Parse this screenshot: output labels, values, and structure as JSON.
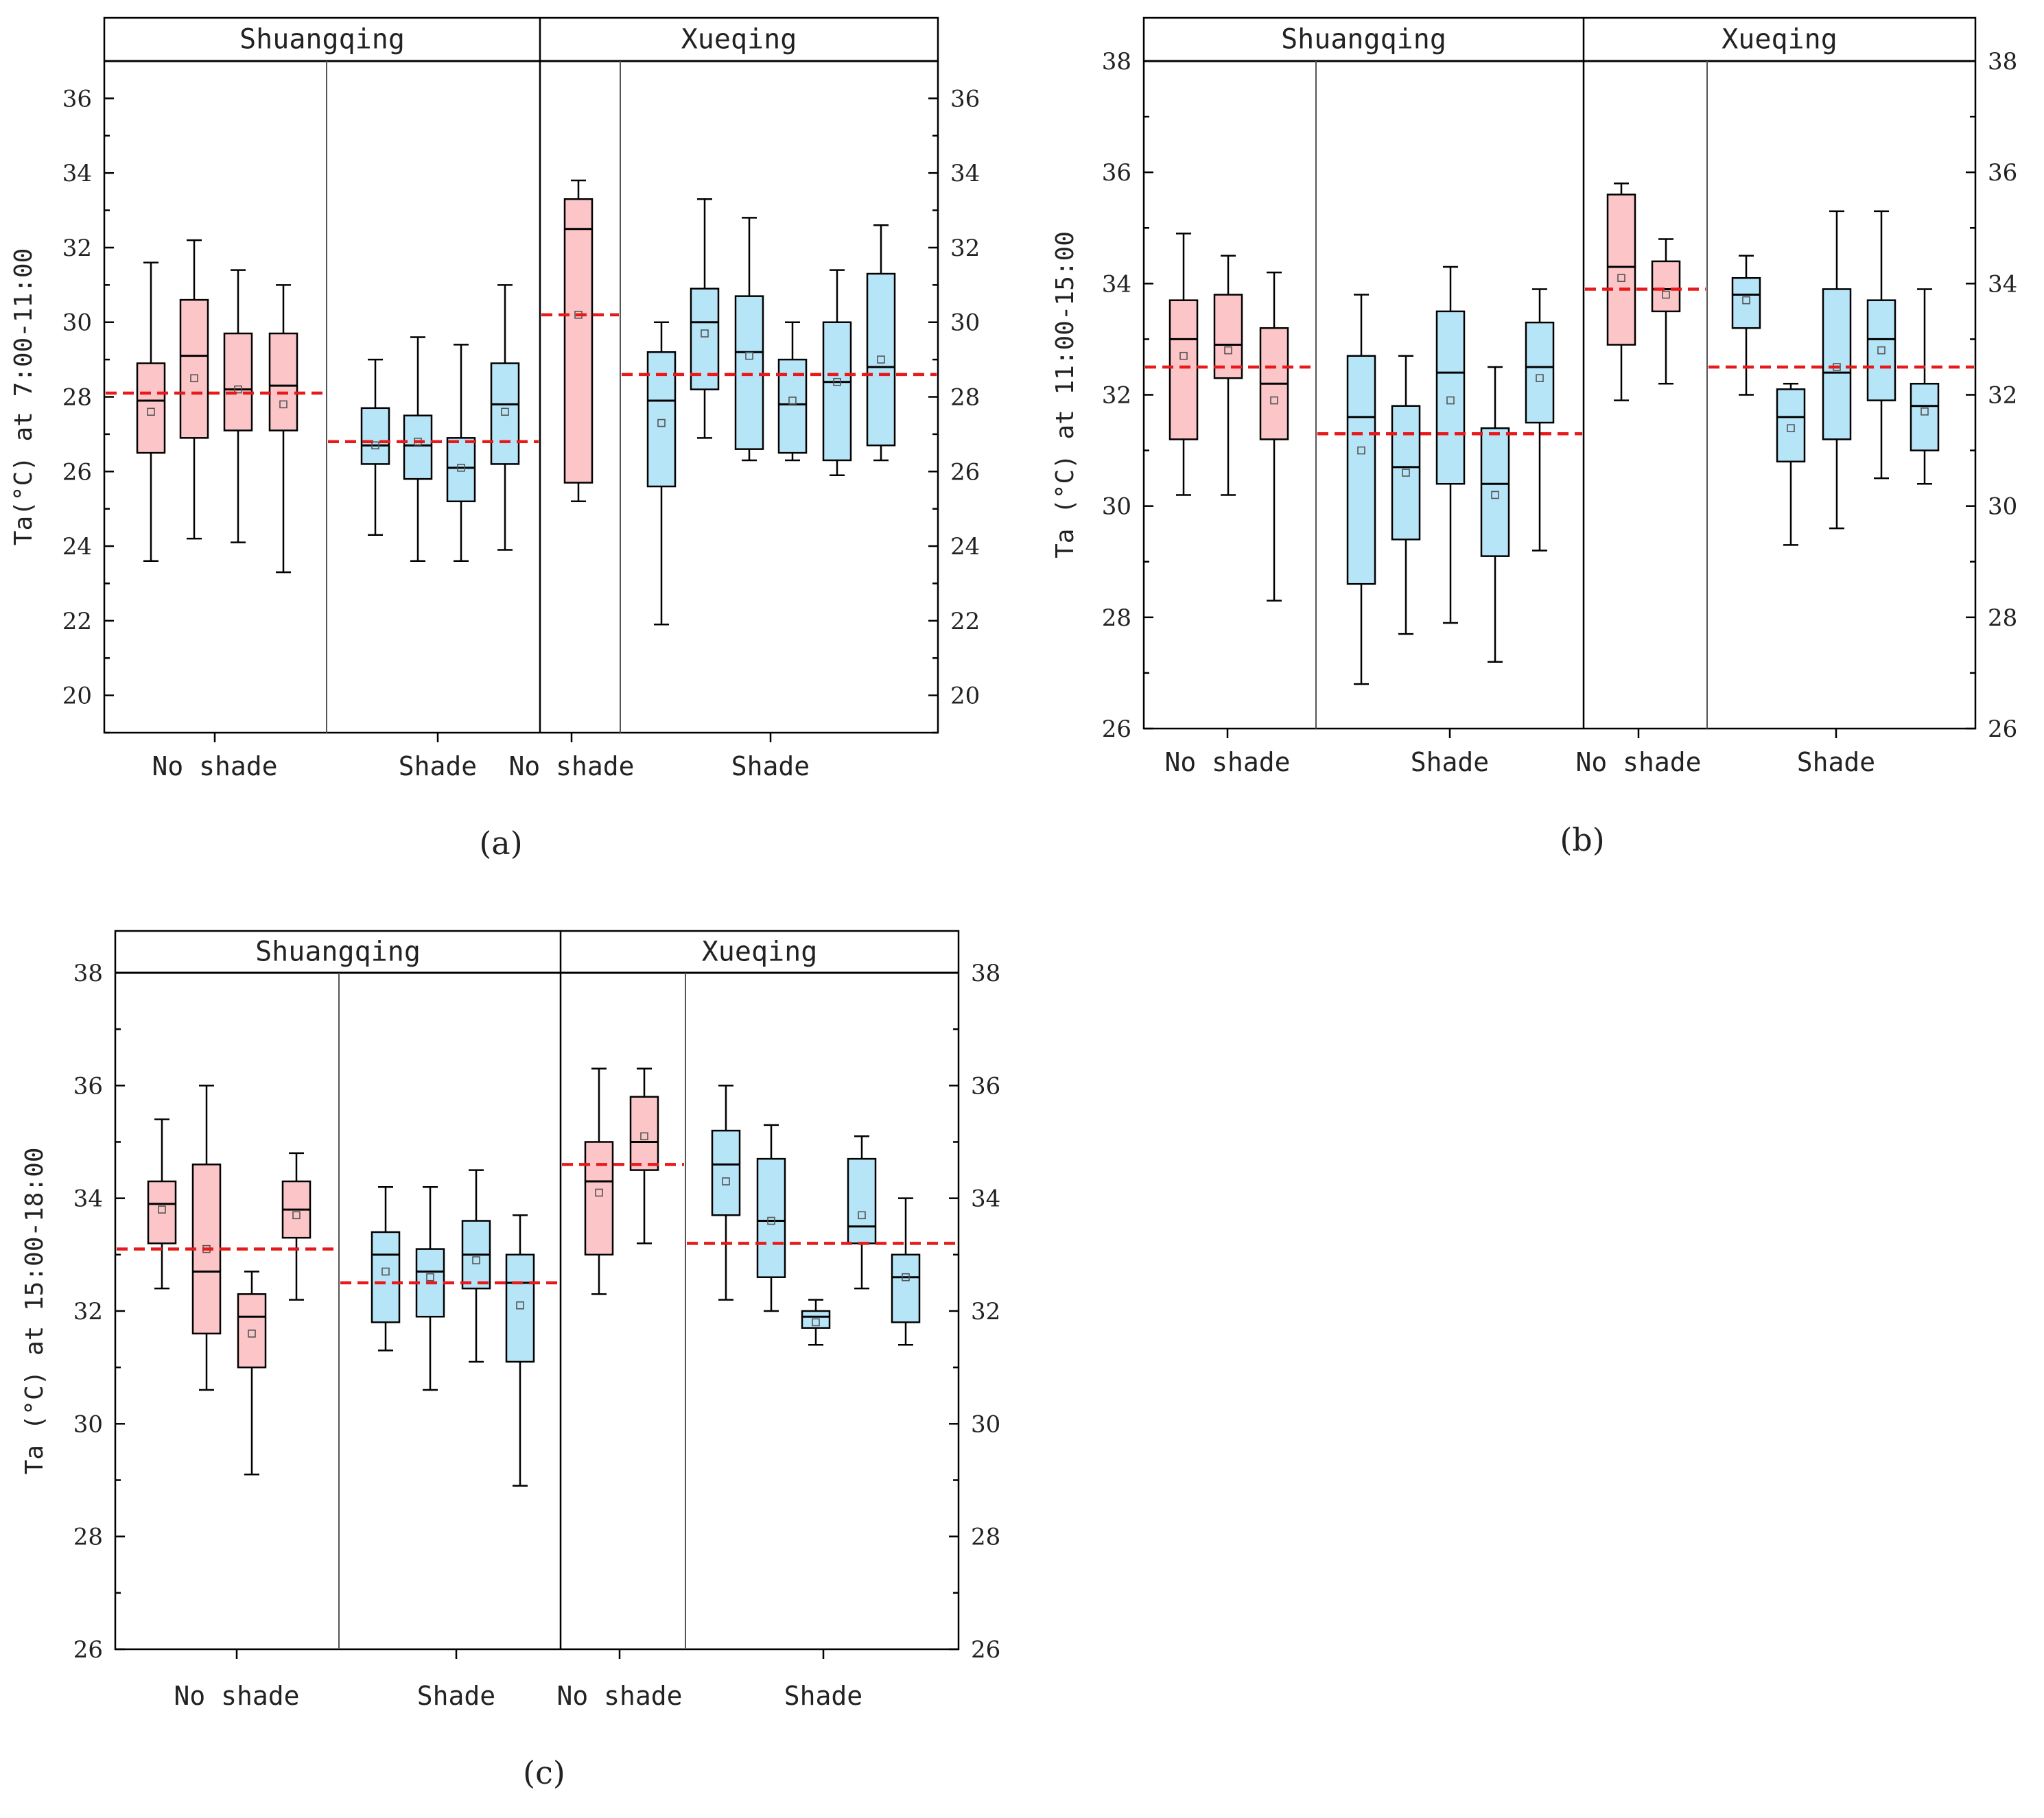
{
  "colors": {
    "no_shade_fill": "#fcc6c8",
    "shade_fill": "#b7e5f8",
    "mean_line": "#e8191a",
    "axis": "#000000",
    "divider": "#555555"
  },
  "chart_data": [
    {
      "type": "box",
      "panel_label": "(a)",
      "ylabel": "Ta(°C) at 7:00-11:00",
      "ylim": [
        19,
        37
      ],
      "header_top": 37.1,
      "yticks": [
        20,
        22,
        24,
        26,
        28,
        30,
        32,
        34,
        36
      ],
      "sites": [
        {
          "name": "Shuangqing",
          "groups": [
            {
              "label": "No shade",
              "category": "no_shade",
              "mean_line": 28.1,
              "boxes": [
                {
                  "whisker_low": 23.6,
                  "q1": 26.5,
                  "median": 27.9,
                  "q3": 28.9,
                  "whisker_high": 31.6,
                  "mean": 27.6
                },
                {
                  "whisker_low": 24.2,
                  "q1": 26.9,
                  "median": 29.1,
                  "q3": 30.6,
                  "whisker_high": 32.2,
                  "mean": 28.5
                },
                {
                  "whisker_low": 24.1,
                  "q1": 27.1,
                  "median": 28.2,
                  "q3": 29.7,
                  "whisker_high": 31.4,
                  "mean": 28.2
                },
                {
                  "whisker_low": 23.3,
                  "q1": 27.1,
                  "median": 28.3,
                  "q3": 29.7,
                  "whisker_high": 31.0,
                  "mean": 27.8
                }
              ]
            },
            {
              "label": "Shade",
              "category": "shade",
              "mean_line": 26.8,
              "boxes": [
                {
                  "whisker_low": 24.3,
                  "q1": 26.2,
                  "median": 26.7,
                  "q3": 27.7,
                  "whisker_high": 29.0,
                  "mean": 26.7
                },
                {
                  "whisker_low": 23.6,
                  "q1": 25.8,
                  "median": 26.7,
                  "q3": 27.5,
                  "whisker_high": 29.6,
                  "mean": 26.8
                },
                {
                  "whisker_low": 23.6,
                  "q1": 25.2,
                  "median": 26.1,
                  "q3": 26.9,
                  "whisker_high": 29.4,
                  "mean": 26.1
                },
                {
                  "whisker_low": 23.9,
                  "q1": 26.2,
                  "median": 27.8,
                  "q3": 28.9,
                  "whisker_high": 31.0,
                  "mean": 27.6
                }
              ]
            }
          ]
        },
        {
          "name": "Xueqing",
          "groups": [
            {
              "label": "No shade",
              "category": "no_shade",
              "mean_line": 30.2,
              "boxes": [
                {
                  "whisker_low": 25.2,
                  "q1": 25.7,
                  "median": 32.5,
                  "q3": 33.3,
                  "whisker_high": 33.8,
                  "mean": 30.2
                }
              ]
            },
            {
              "label": "Shade",
              "category": "shade",
              "mean_line": 28.6,
              "boxes": [
                {
                  "whisker_low": 21.9,
                  "q1": 25.6,
                  "median": 27.9,
                  "q3": 29.2,
                  "whisker_high": 30.0,
                  "mean": 27.3
                },
                {
                  "whisker_low": 26.9,
                  "q1": 28.2,
                  "median": 30.0,
                  "q3": 30.9,
                  "whisker_high": 33.3,
                  "mean": 29.7
                },
                {
                  "whisker_low": 26.3,
                  "q1": 26.6,
                  "median": 29.2,
                  "q3": 30.7,
                  "whisker_high": 32.8,
                  "mean": 29.1
                },
                {
                  "whisker_low": 26.3,
                  "q1": 26.5,
                  "median": 27.8,
                  "q3": 29.0,
                  "whisker_high": 30.0,
                  "mean": 27.9
                },
                {
                  "whisker_low": 25.9,
                  "q1": 26.3,
                  "median": 28.4,
                  "q3": 30.0,
                  "whisker_high": 31.4,
                  "mean": 28.4
                },
                {
                  "whisker_low": 26.3,
                  "q1": 26.7,
                  "median": 28.8,
                  "q3": 31.3,
                  "whisker_high": 32.6,
                  "mean": 29.0
                }
              ]
            }
          ]
        }
      ]
    },
    {
      "type": "box",
      "panel_label": "(b)",
      "ylabel": "Ta (°C) at 11:00-15:00",
      "ylim": [
        26,
        38
      ],
      "header_top": 38.8,
      "yticks": [
        26,
        28,
        30,
        32,
        34,
        36,
        38
      ],
      "sites": [
        {
          "name": "Shuangqing",
          "groups": [
            {
              "label": "No shade",
              "category": "no_shade",
              "mean_line": 32.5,
              "boxes": [
                {
                  "whisker_low": 30.2,
                  "q1": 31.2,
                  "median": 33.0,
                  "q3": 33.7,
                  "whisker_high": 34.9,
                  "mean": 32.7
                },
                {
                  "whisker_low": 30.2,
                  "q1": 32.3,
                  "median": 32.9,
                  "q3": 33.8,
                  "whisker_high": 34.5,
                  "mean": 32.8
                },
                {
                  "whisker_low": 28.3,
                  "q1": 31.2,
                  "median": 32.2,
                  "q3": 33.2,
                  "whisker_high": 34.2,
                  "mean": 31.9
                }
              ]
            },
            {
              "label": "Shade",
              "category": "shade",
              "mean_line": 31.3,
              "boxes": [
                {
                  "whisker_low": 26.8,
                  "q1": 28.6,
                  "median": 31.6,
                  "q3": 32.7,
                  "whisker_high": 33.8,
                  "mean": 31.0
                },
                {
                  "whisker_low": 27.7,
                  "q1": 29.4,
                  "median": 30.7,
                  "q3": 31.8,
                  "whisker_high": 32.7,
                  "mean": 30.6
                },
                {
                  "whisker_low": 27.9,
                  "q1": 30.4,
                  "median": 32.4,
                  "q3": 33.5,
                  "whisker_high": 34.3,
                  "mean": 31.9
                },
                {
                  "whisker_low": 27.2,
                  "q1": 29.1,
                  "median": 30.4,
                  "q3": 31.4,
                  "whisker_high": 32.5,
                  "mean": 30.2
                },
                {
                  "whisker_low": 29.2,
                  "q1": 31.5,
                  "median": 32.5,
                  "q3": 33.3,
                  "whisker_high": 33.9,
                  "mean": 32.3
                }
              ]
            }
          ]
        },
        {
          "name": "Xueqing",
          "groups": [
            {
              "label": "No shade",
              "category": "no_shade",
              "mean_line": 33.9,
              "boxes": [
                {
                  "whisker_low": 31.9,
                  "q1": 32.9,
                  "median": 34.3,
                  "q3": 35.6,
                  "whisker_high": 35.8,
                  "mean": 34.1
                },
                {
                  "whisker_low": 32.2,
                  "q1": 33.5,
                  "median": 33.9,
                  "q3": 34.4,
                  "whisker_high": 34.8,
                  "mean": 33.8
                }
              ]
            },
            {
              "label": "Shade",
              "category": "shade",
              "mean_line": 32.5,
              "boxes": [
                {
                  "whisker_low": 32.0,
                  "q1": 33.2,
                  "median": 33.8,
                  "q3": 34.1,
                  "whisker_high": 34.5,
                  "mean": 33.7
                },
                {
                  "whisker_low": 29.3,
                  "q1": 30.8,
                  "median": 31.6,
                  "q3": 32.1,
                  "whisker_high": 32.2,
                  "mean": 31.4
                },
                {
                  "whisker_low": 29.6,
                  "q1": 31.2,
                  "median": 32.4,
                  "q3": 33.9,
                  "whisker_high": 35.3,
                  "mean": 32.5
                },
                {
                  "whisker_low": 30.5,
                  "q1": 31.9,
                  "median": 33.0,
                  "q3": 33.7,
                  "whisker_high": 35.3,
                  "mean": 32.8
                },
                {
                  "whisker_low": 30.4,
                  "q1": 31.0,
                  "median": 31.8,
                  "q3": 32.2,
                  "whisker_high": 33.9,
                  "mean": 31.7
                }
              ]
            }
          ]
        }
      ]
    },
    {
      "type": "box",
      "panel_label": "(c)",
      "ylabel": "Ta (°C) at 15:00-18:00",
      "ylim": [
        26,
        38
      ],
      "header_top": 38.8,
      "yticks": [
        26,
        28,
        30,
        32,
        34,
        36,
        38
      ],
      "sites": [
        {
          "name": "Shuangqing",
          "groups": [
            {
              "label": "No shade",
              "category": "no_shade",
              "mean_line": 33.1,
              "boxes": [
                {
                  "whisker_low": 32.4,
                  "q1": 33.2,
                  "median": 33.9,
                  "q3": 34.3,
                  "whisker_high": 35.4,
                  "mean": 33.8
                },
                {
                  "whisker_low": 30.6,
                  "q1": 31.6,
                  "median": 32.7,
                  "q3": 34.6,
                  "whisker_high": 36.0,
                  "mean": 33.1
                },
                {
                  "whisker_low": 29.1,
                  "q1": 31.0,
                  "median": 31.9,
                  "q3": 32.3,
                  "whisker_high": 32.7,
                  "mean": 31.6
                },
                {
                  "whisker_low": 32.2,
                  "q1": 33.3,
                  "median": 33.8,
                  "q3": 34.3,
                  "whisker_high": 34.8,
                  "mean": 33.7
                }
              ]
            },
            {
              "label": "Shade",
              "category": "shade",
              "mean_line": 32.5,
              "boxes": [
                {
                  "whisker_low": 31.3,
                  "q1": 31.8,
                  "median": 33.0,
                  "q3": 33.4,
                  "whisker_high": 34.2,
                  "mean": 32.7
                },
                {
                  "whisker_low": 30.6,
                  "q1": 31.9,
                  "median": 32.7,
                  "q3": 33.1,
                  "whisker_high": 34.2,
                  "mean": 32.6
                },
                {
                  "whisker_low": 31.1,
                  "q1": 32.4,
                  "median": 33.0,
                  "q3": 33.6,
                  "whisker_high": 34.5,
                  "mean": 32.9
                },
                {
                  "whisker_low": 28.9,
                  "q1": 31.1,
                  "median": 32.5,
                  "q3": 33.0,
                  "whisker_high": 33.7,
                  "mean": 32.1
                }
              ]
            }
          ]
        },
        {
          "name": "Xueqing",
          "groups": [
            {
              "label": "No shade",
              "category": "no_shade",
              "mean_line": 34.6,
              "boxes": [
                {
                  "whisker_low": 32.3,
                  "q1": 33.0,
                  "median": 34.3,
                  "q3": 35.0,
                  "whisker_high": 36.3,
                  "mean": 34.1
                },
                {
                  "whisker_low": 33.2,
                  "q1": 34.5,
                  "median": 35.0,
                  "q3": 35.8,
                  "whisker_high": 36.3,
                  "mean": 35.1
                }
              ]
            },
            {
              "label": "Shade",
              "category": "shade",
              "mean_line": 33.2,
              "boxes": [
                {
                  "whisker_low": 32.2,
                  "q1": 33.7,
                  "median": 34.6,
                  "q3": 35.2,
                  "whisker_high": 36.0,
                  "mean": 34.3
                },
                {
                  "whisker_low": 32.0,
                  "q1": 32.6,
                  "median": 33.6,
                  "q3": 34.7,
                  "whisker_high": 35.3,
                  "mean": 33.6
                },
                {
                  "whisker_low": 31.4,
                  "q1": 31.7,
                  "median": 31.9,
                  "q3": 32.0,
                  "whisker_high": 32.2,
                  "mean": 31.8
                },
                {
                  "whisker_low": 32.4,
                  "q1": 33.2,
                  "median": 33.5,
                  "q3": 34.7,
                  "whisker_high": 35.1,
                  "mean": 33.7
                },
                {
                  "whisker_low": 31.4,
                  "q1": 31.8,
                  "median": 32.6,
                  "q3": 33.0,
                  "whisker_high": 34.0,
                  "mean": 32.6
                }
              ]
            }
          ]
        }
      ]
    }
  ]
}
